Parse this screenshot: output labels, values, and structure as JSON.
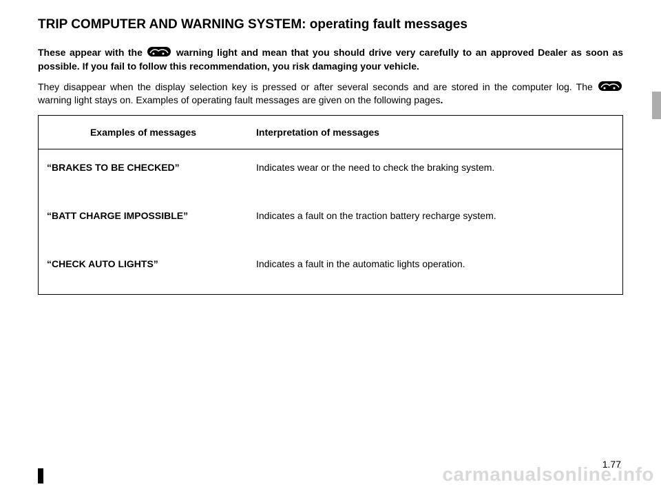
{
  "title": "TRIP COMPUTER AND WARNING SYSTEM: operating fault messages",
  "intro": {
    "line1_part1": "These appear with the ",
    "line1_part2": " warning light and mean that you should drive very carefully to an approved Dealer as soon as possible. If you fail to follow this recommendation, you risk damaging your vehicle.",
    "line2_part1": "They disappear when the display selection key is pressed or after several seconds and are stored in the computer log. The ",
    "line2_part2": " warning light stays on. Examples of operating fault messages are given on the following pages",
    "line2_part3": "."
  },
  "table": {
    "headers": {
      "col1": "Examples of messages",
      "col2": "Interpretation of messages"
    },
    "rows": [
      {
        "msg": "“BRAKES TO BE CHECKED”",
        "interp": "Indicates wear or the need to check the braking system."
      },
      {
        "msg": "“BATT CHARGE IMPOSSIBLE”",
        "interp": "Indicates a fault on the traction battery recharge system."
      },
      {
        "msg": "“CHECK AUTO LIGHTS”",
        "interp": "Indicates a fault in the automatic lights operation."
      }
    ]
  },
  "page_number": "1.77",
  "watermark": "carmanualsonline.info",
  "icon_svg": "<svg width='34' height='14' viewBox='0 0 34 14'><rect x='0' y='0' width='34' height='14' rx='7' fill='#000'/><path d='M4 9 C7 3 13 3 16 6 C20 3 27 3 30 9' stroke='#fff' stroke-width='1.5' fill='none'/><circle cx='9' cy='10' r='1.5' fill='#fff'/><circle cx='23' cy='10' r='1.5' fill='#fff'/></svg>",
  "colors": {
    "text": "#000000",
    "background": "#ffffff",
    "watermark": "#d9d9d9",
    "side_tab": "#e6e6e6"
  }
}
